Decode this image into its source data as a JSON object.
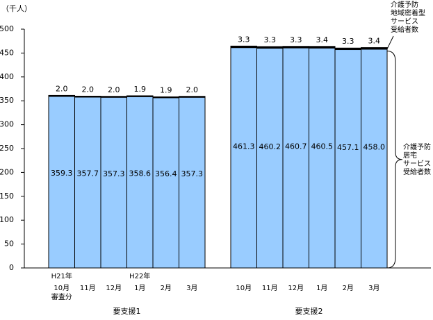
{
  "chart_data": {
    "type": "stacked-bar",
    "y_unit": "（千人）",
    "categories": [
      "10月",
      "11月",
      "12月",
      "1月",
      "2月",
      "3月",
      "10月",
      "11月",
      "12月",
      "1月",
      "2月",
      "3月"
    ],
    "year_labels": [
      "H21年",
      null,
      null,
      "H22年",
      null,
      null,
      null,
      null,
      null,
      null,
      null,
      null
    ],
    "sub_labels": [
      "審査分",
      null,
      null,
      null,
      null,
      null,
      null,
      null,
      null,
      null,
      null,
      null
    ],
    "group_labels": [
      "要支援1",
      "要支援2"
    ],
    "series": [
      {
        "name": [
          "介護予防",
          "居宅",
          "サービス",
          "受給者数"
        ],
        "color": "#99ccff",
        "values": [
          359.3,
          357.7,
          357.3,
          358.6,
          356.4,
          357.3,
          461.3,
          460.2,
          460.7,
          460.5,
          457.1,
          458.0
        ],
        "value_labels": [
          "359.3",
          "357.7",
          "357.3",
          "358.6",
          "356.4",
          "357.3",
          "461.3",
          "460.2",
          "460.7",
          "460.5",
          "457.1",
          "458.0"
        ]
      },
      {
        "name": [
          "介護予防",
          "地域密着型",
          "サービス",
          "受給者数"
        ],
        "color": "#000000",
        "values": [
          2.0,
          2.0,
          2.0,
          1.9,
          1.9,
          2.0,
          3.3,
          3.3,
          3.3,
          3.4,
          3.3,
          3.4
        ],
        "value_labels": [
          "2.0",
          "2.0",
          "2.0",
          "1.9",
          "1.9",
          "2.0",
          "3.3",
          "3.3",
          "3.3",
          "3.4",
          "3.3",
          "3.4"
        ]
      }
    ],
    "ylim": [
      0,
      500
    ],
    "yticks": [
      0,
      50,
      100,
      150,
      200,
      250,
      300,
      350,
      400,
      450,
      500
    ]
  }
}
